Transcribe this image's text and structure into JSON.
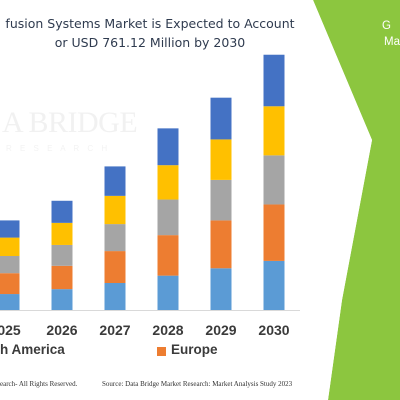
{
  "title": {
    "line1": "fusion Systems Market is Expected to Account",
    "line2": "or USD 761.12 Million by 2030"
  },
  "watermark": {
    "main": "A BRIDGE",
    "sub": "R E S E A R C H"
  },
  "side_panel": {
    "line1": "G",
    "line2": "Ma",
    "colors": {
      "fill": "#8cc63f",
      "white": "#ffffff"
    }
  },
  "legend": {
    "items": [
      {
        "label": "h America",
        "color": ""
      },
      {
        "label": "Europe",
        "color": "#ed7d31"
      }
    ]
  },
  "footer": {
    "left": "earch- All Rights Reserved.",
    "right": "Source: Data Bridge Market Research: Market Analysis Study 2023"
  },
  "chart_data": {
    "type": "bar",
    "stacked": true,
    "categories": [
      "025",
      "2026",
      "2027",
      "2028",
      "2029",
      "2030"
    ],
    "series": [
      {
        "color": "#5b9bd5",
        "values": [
          13,
          17,
          22,
          28,
          34,
          40
        ]
      },
      {
        "color": "#ed7d31",
        "values": [
          17,
          19,
          26,
          33,
          39,
          46
        ]
      },
      {
        "color": "#a5a5a5",
        "values": [
          14,
          17,
          22,
          29,
          33,
          40
        ]
      },
      {
        "color": "#ffc000",
        "values": [
          15,
          18,
          23,
          28,
          33,
          40
        ]
      },
      {
        "color": "#4472c4",
        "values": [
          14,
          18,
          24,
          30,
          34,
          42
        ]
      }
    ],
    "ylim": [
      0,
      220
    ],
    "grid": false,
    "legend_position": "bottom"
  }
}
